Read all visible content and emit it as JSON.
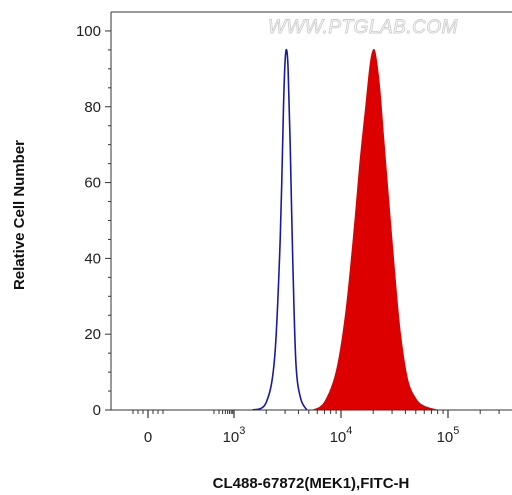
{
  "chart_data": {
    "type": "area",
    "title": "",
    "watermark": "WWW.PTGLAB.COM",
    "xlabel": "CL488-67872(MEK1),FITC-H",
    "ylabel": "Relative Cell Number",
    "x_scale": "biexponential",
    "x_ticks": [
      {
        "value": 0,
        "base": "0",
        "exp": ""
      },
      {
        "value": 1000,
        "base": "10",
        "exp": "3"
      },
      {
        "value": 10000,
        "base": "10",
        "exp": "4"
      },
      {
        "value": 100000,
        "base": "10",
        "exp": "5"
      }
    ],
    "y_ticks": [
      0,
      20,
      40,
      60,
      80,
      100
    ],
    "ylim": [
      0,
      105
    ],
    "grid": false,
    "series": [
      {
        "role": "control",
        "style": "outline",
        "color": "#1a1aa0",
        "points": [
          [
            1500,
            0
          ],
          [
            2000,
            2
          ],
          [
            2400,
            14
          ],
          [
            2700,
            45
          ],
          [
            2900,
            80
          ],
          [
            3000,
            92
          ],
          [
            3100,
            95
          ],
          [
            3200,
            90
          ],
          [
            3350,
            70
          ],
          [
            3550,
            38
          ],
          [
            3800,
            12
          ],
          [
            4200,
            3
          ],
          [
            4800,
            0
          ]
        ]
      },
      {
        "role": "stained",
        "style": "filled",
        "color": "#dd0000",
        "points": [
          [
            5500,
            0
          ],
          [
            7000,
            2
          ],
          [
            9000,
            10
          ],
          [
            11000,
            25
          ],
          [
            13000,
            45
          ],
          [
            15000,
            65
          ],
          [
            17000,
            80
          ],
          [
            18500,
            90
          ],
          [
            19500,
            94
          ],
          [
            20500,
            95
          ],
          [
            21500,
            92
          ],
          [
            23000,
            85
          ],
          [
            25000,
            72
          ],
          [
            28000,
            55
          ],
          [
            32000,
            35
          ],
          [
            36000,
            20
          ],
          [
            42000,
            8
          ],
          [
            50000,
            3
          ],
          [
            60000,
            1
          ],
          [
            80000,
            0
          ]
        ]
      }
    ]
  }
}
